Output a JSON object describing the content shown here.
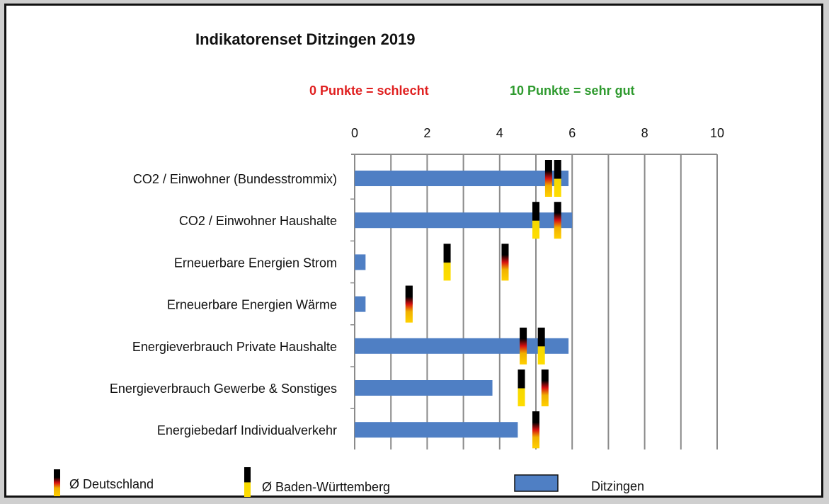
{
  "chart_data": {
    "type": "bar",
    "orientation": "horizontal",
    "title": "Indikatorenset Ditzingen 2019",
    "annotations": [
      {
        "text": "0 Punkte = schlecht",
        "color": "#e02020"
      },
      {
        "text": "10 Punkte = sehr gut",
        "color": "#2e9a2e"
      }
    ],
    "xlim": [
      0,
      10
    ],
    "xticks": [
      0,
      2,
      4,
      6,
      8,
      10
    ],
    "grid": true,
    "grid_step": 1,
    "categories": [
      "CO2 / Einwohner (Bundesstrommix)",
      "CO2 / Einwohner Haushalte",
      "Erneuerbare Energien Strom",
      "Erneuerbare Energien Wärme",
      "Energieverbrauch Private Haushalte",
      "Energieverbrauch Gewerbe & Sonstiges",
      "Energiebedarf Individualverkehr"
    ],
    "series": [
      {
        "name": "Ditzingen",
        "kind": "bar",
        "color": "#4f7fc4",
        "values": [
          5.9,
          6.0,
          0.3,
          0.3,
          5.9,
          3.8,
          4.5
        ]
      },
      {
        "name": "Ø Deutschland",
        "kind": "marker",
        "colors": [
          "#000000",
          "#dd0000",
          "#ffce00"
        ],
        "values": [
          5.35,
          5.6,
          4.15,
          1.5,
          4.65,
          5.25,
          5.0
        ]
      },
      {
        "name": "Ø Baden-Württemberg",
        "kind": "marker",
        "colors": [
          "#000000",
          "#ffdd00"
        ],
        "values": [
          5.6,
          5.0,
          2.55,
          1.5,
          5.15,
          4.6,
          5.0
        ]
      }
    ],
    "legend_position": "bottom"
  }
}
